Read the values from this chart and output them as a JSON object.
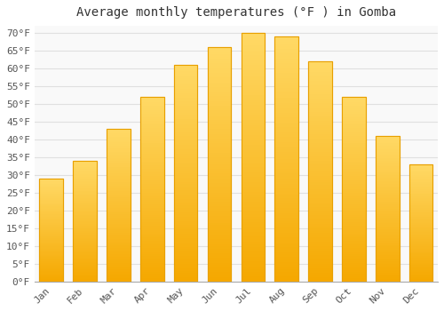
{
  "months": [
    "Jan",
    "Feb",
    "Mar",
    "Apr",
    "May",
    "Jun",
    "Jul",
    "Aug",
    "Sep",
    "Oct",
    "Nov",
    "Dec"
  ],
  "values": [
    29,
    34,
    43,
    52,
    61,
    66,
    70,
    69,
    62,
    52,
    41,
    33
  ],
  "bar_color_bottom": "#F5A800",
  "bar_color_top": "#FFD966",
  "bar_edge_color": "#E8A000",
  "title": "Average monthly temperatures (°F ) in Gomba",
  "ylim": [
    0,
    72
  ],
  "ytick_step": 5,
  "background_color": "#ffffff",
  "plot_bg_color": "#f9f9f9",
  "grid_color": "#e0e0e0",
  "title_fontsize": 10,
  "tick_fontsize": 8,
  "font_family": "monospace",
  "tick_color": "#555555"
}
